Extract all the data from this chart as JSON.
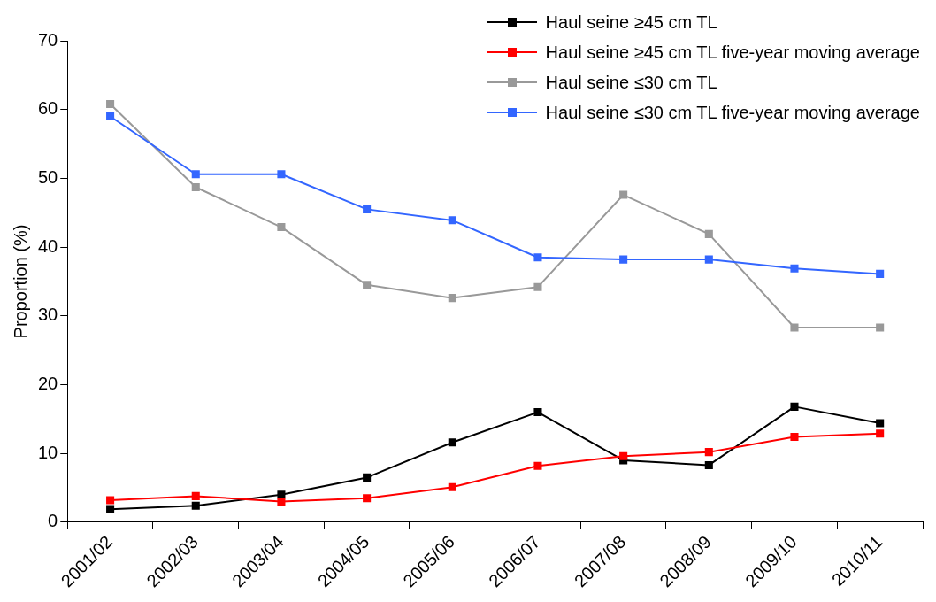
{
  "chart_data": {
    "type": "line",
    "ylabel": "Proportion (%)",
    "categories": [
      "2001/02",
      "2002/03",
      "2003/04",
      "2004/05",
      "2005/06",
      "2006/07",
      "2007/08",
      "2008/09",
      "2009/10",
      "2010/11"
    ],
    "series": [
      {
        "name": "Haul seine ≥45 cm TL",
        "color": "#000000",
        "values": [
          1.9,
          2.4,
          4.0,
          6.5,
          11.6,
          16.0,
          9.0,
          8.3,
          16.8,
          14.4
        ]
      },
      {
        "name": "Haul seine ≥45 cm TL five-year moving average",
        "color": "#ff0000",
        "values": [
          3.2,
          3.8,
          3.0,
          3.5,
          5.1,
          8.2,
          9.6,
          10.2,
          12.4,
          12.9
        ]
      },
      {
        "name": "Haul seine ≤30 cm TL",
        "color": "#999999",
        "values": [
          60.8,
          48.7,
          42.9,
          34.5,
          32.6,
          34.2,
          47.6,
          41.9,
          28.3,
          28.3
        ]
      },
      {
        "name": "Haul seine ≤30 cm TL five-year moving average",
        "color": "#3366ff",
        "values": [
          59.0,
          50.6,
          50.6,
          45.5,
          43.9,
          38.5,
          38.2,
          38.2,
          36.9,
          36.1
        ]
      }
    ],
    "ylim": [
      0,
      70
    ],
    "yticks": [
      0,
      10,
      20,
      30,
      40,
      50,
      60,
      70
    ],
    "grid": false,
    "legend": "top right",
    "marker": "square",
    "line_style": "solid"
  }
}
